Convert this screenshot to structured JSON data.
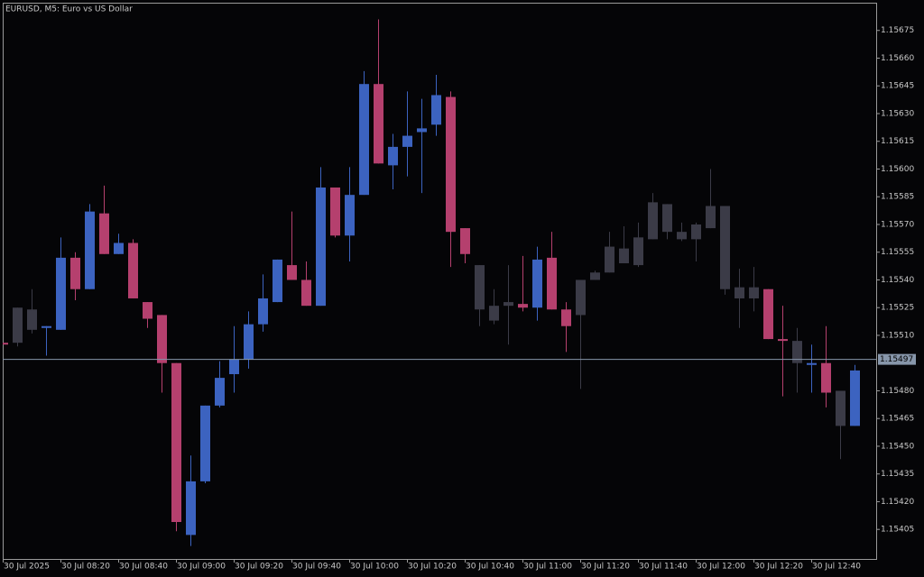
{
  "chart_data": {
    "type": "candlestick",
    "title": "EURUSD, M5:  Euro vs US Dollar",
    "categories": [
      "30 Jul 2025",
      null,
      null,
      null,
      "30 Jul 08:20",
      null,
      null,
      null,
      "30 Jul 08:40",
      null,
      null,
      null,
      "30 Jul 09:00",
      null,
      null,
      null,
      "30 Jul 09:20",
      null,
      null,
      null,
      "30 Jul 09:40",
      null,
      null,
      null,
      "30 Jul 10:00",
      null,
      null,
      null,
      "30 Jul 10:20",
      null,
      null,
      null,
      "30 Jul 10:40",
      null,
      null,
      null,
      "30 Jul 11:00",
      null,
      null,
      null,
      "30 Jul 11:20",
      null,
      null,
      null,
      "30 Jul 11:40",
      null,
      null,
      null,
      "30 Jul 12:00",
      null,
      null,
      null,
      "30 Jul 12:20",
      null,
      null,
      null,
      "30 Jul 12:40",
      null,
      null,
      null
    ],
    "open": [
      1.15506,
      1.15506,
      1.15513,
      1.15514,
      1.15513,
      1.15552,
      1.15535,
      1.15576,
      1.15554,
      1.1556,
      1.15528,
      1.15521,
      1.15495,
      1.15402,
      1.15431,
      1.15472,
      1.15489,
      1.15497,
      1.15516,
      1.15528,
      1.15548,
      1.1554,
      1.15526,
      1.1559,
      1.15564,
      1.15586,
      1.15646,
      1.15602,
      1.15612,
      1.1562,
      1.15624,
      1.15639,
      1.15568,
      1.15548,
      1.15518,
      1.15528,
      1.15527,
      1.15525,
      1.15552,
      1.15524,
      1.15521,
      1.1554,
      1.15544,
      1.15557,
      1.15548,
      1.15562,
      1.15581,
      1.15562,
      1.15562,
      1.15568,
      1.1558,
      1.15536,
      1.1553,
      1.15535,
      1.15508,
      1.15507,
      1.15494,
      1.15495,
      1.15461,
      1.15461
    ],
    "high": [
      1.15506,
      1.15525,
      1.15535,
      1.15515,
      1.15563,
      1.15555,
      1.15581,
      1.15591,
      1.15565,
      1.15562,
      1.15528,
      1.15521,
      1.15495,
      1.15445,
      1.15472,
      1.15496,
      1.15515,
      1.15523,
      1.15543,
      1.15551,
      1.15577,
      1.1555,
      1.15601,
      1.1559,
      1.15601,
      1.15653,
      1.15681,
      1.15619,
      1.15642,
      1.15638,
      1.15651,
      1.15642,
      1.15568,
      1.15548,
      1.15535,
      1.15548,
      1.15553,
      1.15558,
      1.15566,
      1.15528,
      1.1554,
      1.15545,
      1.15566,
      1.15569,
      1.15571,
      1.15587,
      1.15581,
      1.15571,
      1.15571,
      1.156,
      1.1558,
      1.15546,
      1.15547,
      1.15535,
      1.15526,
      1.15514,
      1.15505,
      1.15515,
      1.1548,
      1.15494
    ],
    "low": [
      1.15505,
      1.15504,
      1.15511,
      1.15499,
      1.15513,
      1.15529,
      1.15535,
      1.15554,
      1.15554,
      1.1553,
      1.15514,
      1.15479,
      1.15404,
      1.15396,
      1.1543,
      1.15471,
      1.15479,
      1.15492,
      1.15512,
      1.15528,
      1.1554,
      1.15526,
      1.15526,
      1.15563,
      1.1555,
      1.15586,
      1.15603,
      1.15589,
      1.15596,
      1.15587,
      1.15618,
      1.15547,
      1.15549,
      1.15515,
      1.15516,
      1.15505,
      1.15523,
      1.15518,
      1.15524,
      1.15501,
      1.15481,
      1.1554,
      1.15544,
      1.15549,
      1.15547,
      1.15562,
      1.15562,
      1.15561,
      1.1555,
      1.15568,
      1.15532,
      1.15514,
      1.15523,
      1.15508,
      1.15477,
      1.15479,
      1.15479,
      1.15471,
      1.15443,
      1.15461
    ],
    "close": [
      1.15505,
      1.15525,
      1.15524,
      1.15515,
      1.15552,
      1.15535,
      1.15577,
      1.15554,
      1.1556,
      1.1553,
      1.15519,
      1.15495,
      1.15409,
      1.15431,
      1.15472,
      1.15487,
      1.15497,
      1.15516,
      1.1553,
      1.15551,
      1.1554,
      1.15526,
      1.1559,
      1.15564,
      1.15586,
      1.15646,
      1.15603,
      1.15612,
      1.15618,
      1.15622,
      1.1564,
      1.15566,
      1.15554,
      1.15524,
      1.15526,
      1.15526,
      1.15525,
      1.15551,
      1.15524,
      1.15515,
      1.1554,
      1.15544,
      1.15558,
      1.15549,
      1.15563,
      1.15582,
      1.15566,
      1.15566,
      1.1557,
      1.1558,
      1.15535,
      1.1553,
      1.15536,
      1.15508,
      1.15507,
      1.15495,
      1.15495,
      1.15479,
      1.1548,
      1.15491
    ],
    "colors": [
      "#b5406e",
      "#3b3b47",
      "#3b3b47",
      "#3c63c0",
      "#3c63c0",
      "#b5406e",
      "#3c63c0",
      "#b5406e",
      "#3c63c0",
      "#b5406e",
      "#b5406e",
      "#b5406e",
      "#b5406e",
      "#3c63c0",
      "#3c63c0",
      "#3c63c0",
      "#3c63c0",
      "#3c63c0",
      "#3c63c0",
      "#3c63c0",
      "#b5406e",
      "#b5406e",
      "#3c63c0",
      "#b5406e",
      "#3c63c0",
      "#3c63c0",
      "#b5406e",
      "#3c63c0",
      "#3c63c0",
      "#3c63c0",
      "#3c63c0",
      "#b5406e",
      "#b5406e",
      "#3b3b47",
      "#3b3b47",
      "#3b3b47",
      "#b5406e",
      "#3c63c0",
      "#b5406e",
      "#b5406e",
      "#3b3b47",
      "#3b3b47",
      "#3b3b47",
      "#3b3b47",
      "#3b3b47",
      "#3b3b47",
      "#3b3b47",
      "#3b3b47",
      "#3b3b47",
      "#3b3b47",
      "#3b3b47",
      "#3b3b47",
      "#3b3b47",
      "#b5406e",
      "#b5406e",
      "#3b3b47",
      "#3c63c0",
      "#b5406e",
      "#3b3b47",
      "#3c63c0"
    ],
    "ylim": [
      1.15389,
      1.1569
    ],
    "yticks": [
      1.15405,
      {
        "value": 1.1542,
        "label": "1.15420"
      },
      1.15435,
      {
        "value": 1.1545,
        "label": "1.15450"
      },
      1.15465,
      {
        "value": 1.1548,
        "label": "1.15480"
      },
      {
        "value": 1.1551,
        "label": "1.15510"
      },
      1.15525,
      {
        "value": 1.1554,
        "label": "1.15540"
      },
      1.15555,
      {
        "value": 1.1557,
        "label": "1.15570"
      },
      1.15585,
      {
        "value": 1.156,
        "label": "1.15600"
      },
      1.15615,
      {
        "value": 1.1563,
        "label": "1.15630"
      },
      1.15645,
      {
        "value": 1.1566,
        "label": "1.15660"
      },
      1.15675
    ],
    "current_price": 1.15497,
    "current_price_color": "#8796aa"
  }
}
